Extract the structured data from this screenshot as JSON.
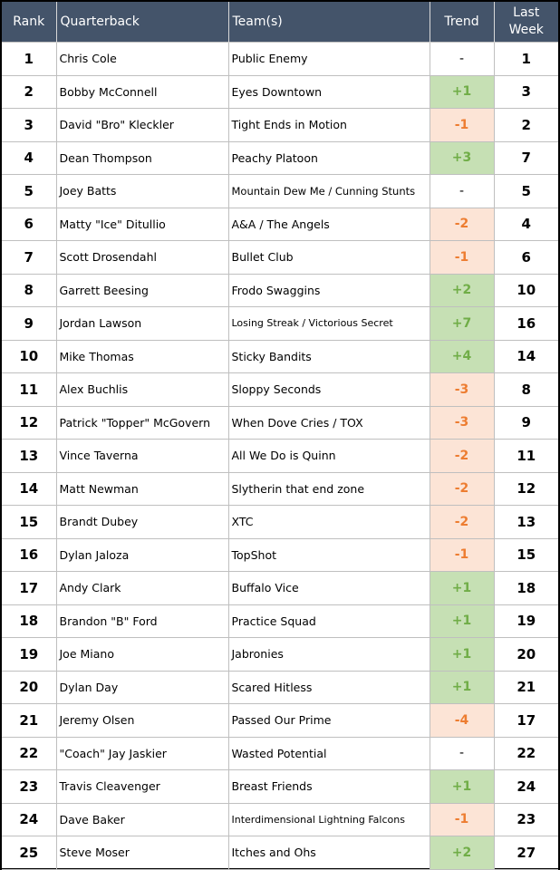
{
  "headers": {
    "rank": "Rank",
    "qb": "Quarterback",
    "team": "Team(s)",
    "trend": "Trend",
    "last_week": "Last Week"
  },
  "colors": {
    "header_bg": "#44546A",
    "up_fill": "#C6E0B4",
    "up_text": "#70AD47",
    "down_fill": "#FCE4D6",
    "down_text": "#ED7D31"
  },
  "rows": [
    {
      "rank": "1",
      "qb": "Chris Cole",
      "team": "Public Enemy",
      "trend": "-",
      "last": "1"
    },
    {
      "rank": "2",
      "qb": "Bobby McConnell",
      "team": "Eyes Downtown",
      "trend": "+1",
      "last": "3"
    },
    {
      "rank": "3",
      "qb": "David \"Bro\" Kleckler",
      "team": "Tight Ends in Motion",
      "trend": "-1",
      "last": "2"
    },
    {
      "rank": "4",
      "qb": "Dean Thompson",
      "team": "Peachy Platoon",
      "trend": "+3",
      "last": "7"
    },
    {
      "rank": "5",
      "qb": "Joey Batts",
      "team": "Mountain Dew Me / Cunning Stunts",
      "trend": "-",
      "last": "5"
    },
    {
      "rank": "6",
      "qb": "Matty \"Ice\" Ditullio",
      "team": "A&A / The Angels",
      "trend": "-2",
      "last": "4"
    },
    {
      "rank": "7",
      "qb": "Scott Drosendahl",
      "team": "Bullet Club",
      "trend": "-1",
      "last": "6"
    },
    {
      "rank": "8",
      "qb": "Garrett Beesing",
      "team": "Frodo Swaggins",
      "trend": "+2",
      "last": "10"
    },
    {
      "rank": "9",
      "qb": "Jordan Lawson",
      "team": "Losing Streak / Victorious Secret",
      "trend": "+7",
      "last": "16"
    },
    {
      "rank": "10",
      "qb": "Mike Thomas",
      "team": "Sticky Bandits",
      "trend": "+4",
      "last": "14"
    },
    {
      "rank": "11",
      "qb": "Alex Buchlis",
      "team": "Sloppy Seconds",
      "trend": "-3",
      "last": "8"
    },
    {
      "rank": "12",
      "qb": "Patrick \"Topper\" McGovern",
      "team": "When Dove Cries / TOX",
      "trend": "-3",
      "last": "9"
    },
    {
      "rank": "13",
      "qb": "Vince Taverna",
      "team": "All We Do is Quinn",
      "trend": "-2",
      "last": "11"
    },
    {
      "rank": "14",
      "qb": "Matt Newman",
      "team": "Slytherin that end zone",
      "trend": "-2",
      "last": "12"
    },
    {
      "rank": "15",
      "qb": "Brandt Dubey",
      "team": "XTC",
      "trend": "-2",
      "last": "13"
    },
    {
      "rank": "16",
      "qb": "Dylan Jaloza",
      "team": "TopShot",
      "trend": "-1",
      "last": "15"
    },
    {
      "rank": "17",
      "qb": "Andy Clark",
      "team": "Buffalo Vice",
      "trend": "+1",
      "last": "18"
    },
    {
      "rank": "18",
      "qb": "Brandon \"B\" Ford",
      "team": "Practice Squad",
      "trend": "+1",
      "last": "19"
    },
    {
      "rank": "19",
      "qb": "Joe Miano",
      "team": "Jabronies",
      "trend": "+1",
      "last": "20"
    },
    {
      "rank": "20",
      "qb": "Dylan Day",
      "team": "Scared Hitless",
      "trend": "+1",
      "last": "21"
    },
    {
      "rank": "21",
      "qb": "Jeremy Olsen",
      "team": "Passed Our Prime",
      "trend": "-4",
      "last": "17"
    },
    {
      "rank": "22",
      "qb": "\"Coach\" Jay Jaskier",
      "team": "Wasted Potential",
      "trend": "-",
      "last": "22"
    },
    {
      "rank": "23",
      "qb": "Travis Cleavenger",
      "team": "Breast Friends",
      "trend": "+1",
      "last": "24"
    },
    {
      "rank": "24",
      "qb": "Dave Baker",
      "team": "Interdimensional Lightning Falcons",
      "trend": "-1",
      "last": "23"
    },
    {
      "rank": "25",
      "qb": "Steve Moser",
      "team": "Itches and Ohs",
      "trend": "+2",
      "last": "27"
    }
  ]
}
